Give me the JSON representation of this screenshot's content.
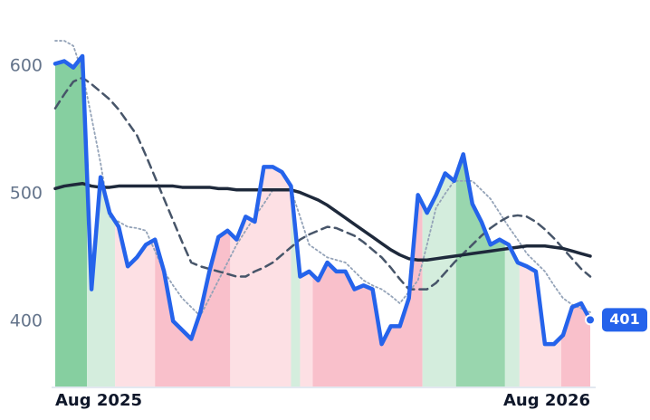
{
  "chart_data": {
    "type": "line",
    "categories": [
      "Aug 2025",
      null,
      null,
      null,
      null,
      null,
      null,
      null,
      null,
      null,
      null,
      null,
      null,
      null,
      null,
      null,
      null,
      null,
      null,
      null,
      null,
      null,
      null,
      null,
      null,
      null,
      null,
      null,
      null,
      null,
      null,
      null,
      null,
      null,
      null,
      null,
      null,
      null,
      null,
      null,
      null,
      null,
      null,
      null,
      null,
      null,
      null,
      null,
      null,
      null,
      null,
      null,
      null,
      null,
      null,
      null,
      null,
      null,
      null,
      "Aug 2026"
    ],
    "ylim": [
      348,
      625
    ],
    "yticks": [
      400,
      500,
      600
    ],
    "bands": [
      {
        "from": 0,
        "to": 3.5,
        "color": "#86cfa0"
      },
      {
        "from": 3.5,
        "to": 6.6,
        "color": "#d4eddd"
      },
      {
        "from": 6.6,
        "to": 11,
        "color": "#fde0e4"
      },
      {
        "from": 11,
        "to": 19.3,
        "color": "#f9c0cb"
      },
      {
        "from": 19.3,
        "to": 26,
        "color": "#fde0e4"
      },
      {
        "from": 26,
        "to": 27,
        "color": "#d4eddd"
      },
      {
        "from": 27,
        "to": 28.4,
        "color": "#fde0e4"
      },
      {
        "from": 28.4,
        "to": 40.5,
        "color": "#f9c0cb"
      },
      {
        "from": 40.5,
        "to": 44.2,
        "color": "#d4eddd"
      },
      {
        "from": 44.2,
        "to": 49.6,
        "color": "#99d6ae"
      },
      {
        "from": 49.6,
        "to": 51.2,
        "color": "#d4eddd"
      },
      {
        "from": 51.2,
        "to": 55.8,
        "color": "#fde0e4"
      },
      {
        "from": 55.8,
        "to": 59,
        "color": "#f9c0cb"
      }
    ],
    "series": [
      {
        "color": "#94a3b8",
        "style": "dotted",
        "values": [
          620,
          620,
          616,
          595,
          560,
          524,
          482,
          478,
          474,
          473,
          471,
          455,
          439,
          428,
          418,
          411,
          404,
          418,
          432,
          446,
          460,
          471,
          482,
          492,
          503,
          503,
          503,
          482,
          460,
          455,
          450,
          448,
          446,
          439,
          432,
          428,
          425,
          420,
          414,
          423,
          432,
          460,
          489,
          500,
          510,
          510,
          510,
          503,
          496,
          485,
          474,
          464,
          453,
          446,
          439,
          428,
          418,
          413,
          410,
          407
        ]
      },
      {
        "color": "#475569",
        "style": "dashed",
        "values": [
          567,
          578,
          588,
          591,
          586,
          580,
          574,
          566,
          556,
          546,
          530,
          513,
          496,
          479,
          462,
          446,
          443,
          441,
          439,
          437,
          435,
          435,
          439,
          442,
          446,
          452,
          458,
          464,
          468,
          471,
          474,
          473,
          470,
          467,
          462,
          456,
          450,
          442,
          433,
          425,
          425,
          425,
          430,
          438,
          446,
          453,
          460,
          467,
          473,
          478,
          482,
          483,
          482,
          478,
          472,
          465,
          457,
          449,
          441,
          435
        ]
      },
      {
        "color": "#1e293b",
        "style": "solid",
        "values": [
          504,
          506,
          507,
          508,
          506,
          505,
          505,
          506,
          506,
          506,
          506,
          506,
          506,
          506,
          505,
          505,
          505,
          505,
          504,
          504,
          503,
          503,
          503,
          503,
          503,
          503,
          503,
          501,
          498,
          495,
          491,
          486,
          481,
          476,
          471,
          466,
          461,
          456,
          452,
          449,
          448,
          448,
          449,
          450,
          451,
          452,
          453,
          454,
          455,
          456,
          457,
          458,
          459,
          459,
          459,
          458,
          457,
          455,
          453,
          451
        ]
      },
      {
        "color": "#2563eb",
        "style": "thick",
        "values": [
          602,
          604,
          599,
          608,
          425,
          513,
          485,
          474,
          443,
          450,
          460,
          464,
          439,
          400,
          393,
          386,
          407,
          439,
          466,
          471,
          464,
          482,
          478,
          521,
          521,
          517,
          506,
          435,
          439,
          432,
          446,
          439,
          439,
          425,
          428,
          425,
          382,
          396,
          396,
          418,
          499,
          485,
          499,
          516,
          510,
          531,
          492,
          478,
          460,
          464,
          460,
          446,
          443,
          439,
          382,
          382,
          389,
          411,
          414,
          401
        ]
      }
    ]
  }
}
